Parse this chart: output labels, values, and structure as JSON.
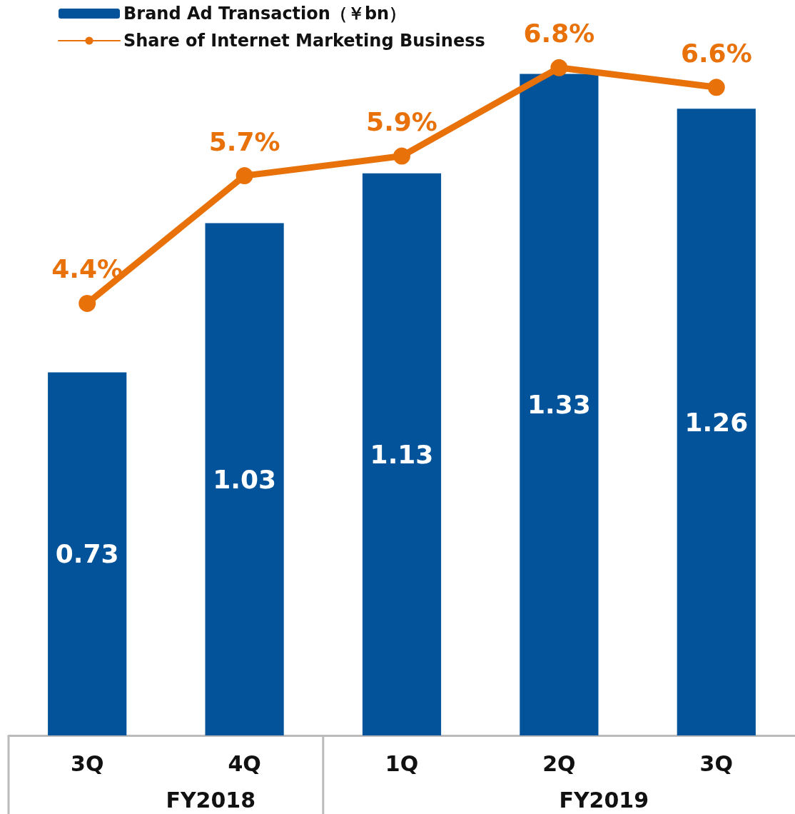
{
  "chart_data": {
    "type": "bar",
    "categories": [
      "3Q",
      "4Q",
      "1Q",
      "2Q",
      "3Q"
    ],
    "series": [
      {
        "name": "Brand Ad Transaction（￥bn）",
        "color": "#02539a",
        "values": [
          0.73,
          1.03,
          1.13,
          1.33,
          1.26
        ]
      },
      {
        "name": "Share of Internet Marketing Business",
        "type": "line",
        "axis": "y2",
        "color": "#e8710a",
        "values": [
          4.4,
          5.7,
          5.9,
          6.8,
          6.6
        ],
        "value_labels": [
          "4.4%",
          "5.7%",
          "5.9%",
          "6.8%",
          "6.6%"
        ]
      }
    ],
    "data_labels": true,
    "tick_labels": "x",
    "grid": false,
    "legend": "top left",
    "marker": "circle",
    "line_style": "solid",
    "annotations": [
      "FY2018",
      "FY2019"
    ]
  }
}
